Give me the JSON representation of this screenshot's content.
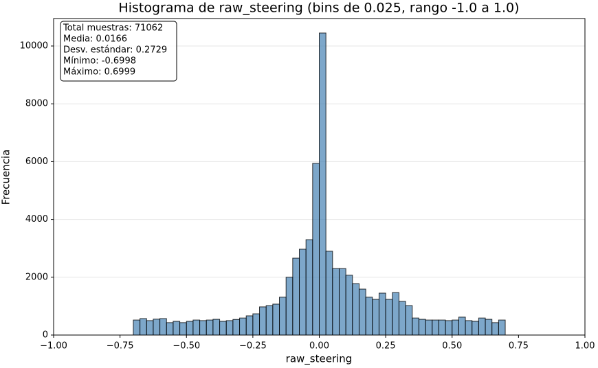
{
  "chart_data": {
    "type": "histogram",
    "title": "Histograma de raw_steering (bins de 0.025, rango -1.0 a 1.0)",
    "x_label": "raw_steering",
    "y_label": "Frecuencia",
    "annotations": [
      "Total muestras: 71062",
      "Media: 0.0166",
      "Desv. estándar: 0.2729",
      "Mínimo: -0.6998",
      "Máximo: 0.6999"
    ],
    "bins": [
      -0.7,
      -0.675,
      -0.65,
      -0.625,
      -0.6,
      -0.575,
      -0.55,
      -0.525,
      -0.5,
      -0.475,
      -0.45,
      -0.425,
      -0.4,
      -0.375,
      -0.35,
      -0.325,
      -0.3,
      -0.275,
      -0.25,
      -0.225,
      -0.2,
      -0.175,
      -0.15,
      -0.125,
      -0.1,
      -0.075,
      -0.05,
      -0.025,
      0,
      0.025,
      0.05,
      0.075,
      0.1,
      0.125,
      0.15,
      0.175,
      0.2,
      0.225,
      0.25,
      0.275,
      0.3,
      0.325,
      0.35,
      0.375,
      0.4,
      0.425,
      0.45,
      0.475,
      0.5,
      0.525,
      0.55,
      0.575,
      0.6,
      0.625,
      0.65,
      0.675,
      0.7
    ],
    "values": [
      520,
      570,
      500,
      550,
      570,
      430,
      475,
      430,
      475,
      520,
      500,
      520,
      545,
      475,
      500,
      540,
      590,
      665,
      735,
      975,
      1020,
      1070,
      1310,
      2000,
      2660,
      2970,
      3300,
      5940,
      10450,
      2900,
      2300,
      2300,
      2070,
      1780,
      1590,
      1310,
      1235,
      1450,
      1235,
      1470,
      1165,
      1020,
      590,
      545,
      520,
      520,
      520,
      500,
      520,
      620,
      500,
      475,
      590,
      545,
      430,
      520
    ],
    "color": "#4682b4",
    "edge_color": "#000000",
    "opacity": 0.7,
    "xlim": [
      -1,
      1
    ],
    "xticks": [
      {
        "value": -1,
        "label": "−1.00"
      },
      {
        "value": -0.75,
        "label": "−0.75"
      },
      {
        "value": -0.5,
        "label": "−0.50"
      },
      {
        "value": -0.25,
        "label": "−0.25"
      },
      {
        "value": 0,
        "label": "0.00"
      },
      {
        "value": 0.25,
        "label": "0.25"
      },
      {
        "value": 0.5,
        "label": "0.50"
      },
      {
        "value": 0.75,
        "label": "0.75"
      },
      {
        "value": 1,
        "label": "1.00"
      }
    ],
    "ylim": [
      0,
      10950
    ],
    "yticks": [
      0,
      2000,
      4000,
      6000,
      8000,
      10000
    ],
    "grid": "y"
  }
}
